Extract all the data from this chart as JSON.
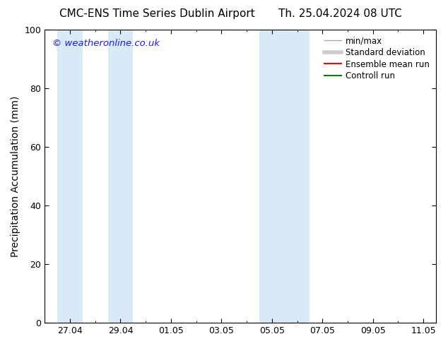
{
  "title_left": "CMC-ENS Time Series Dublin Airport",
  "title_right": "Th. 25.04.2024 08 UTC",
  "ylabel": "Precipitation Accumulation (mm)",
  "watermark": "© weatheronline.co.uk",
  "ylim": [
    0,
    100
  ],
  "yticks": [
    0,
    20,
    40,
    60,
    80,
    100
  ],
  "xtick_labels": [
    "27.04",
    "29.04",
    "01.05",
    "03.05",
    "05.05",
    "07.05",
    "09.05",
    "11.05"
  ],
  "xtick_positions": [
    1,
    3,
    5,
    7,
    9,
    11,
    13,
    15
  ],
  "xlim": [
    0,
    15.5
  ],
  "background_color": "#ffffff",
  "plot_bg_color": "#ffffff",
  "band_color": "#d8eaf5",
  "band1_x1": 0.75,
  "band1_x2": 1.25,
  "band1b_x1": 2.75,
  "band1b_x2": 3.25,
  "band2_x1": 8.75,
  "band2_x2": 9.25,
  "band2b_x1": 9.75,
  "band2b_x2": 10.25,
  "legend_entries": [
    {
      "label": "min/max",
      "color": "#aaaaaa",
      "linewidth": 1.0
    },
    {
      "label": "Standard deviation",
      "color": "#cccccc",
      "linewidth": 4
    },
    {
      "label": "Ensemble mean run",
      "color": "#ff0000",
      "linewidth": 1.5
    },
    {
      "label": "Controll run",
      "color": "#008000",
      "linewidth": 1.5
    }
  ],
  "watermark_color": "#1a1aff",
  "title_fontsize": 11,
  "axis_label_fontsize": 10,
  "tick_fontsize": 9,
  "legend_fontsize": 8.5
}
